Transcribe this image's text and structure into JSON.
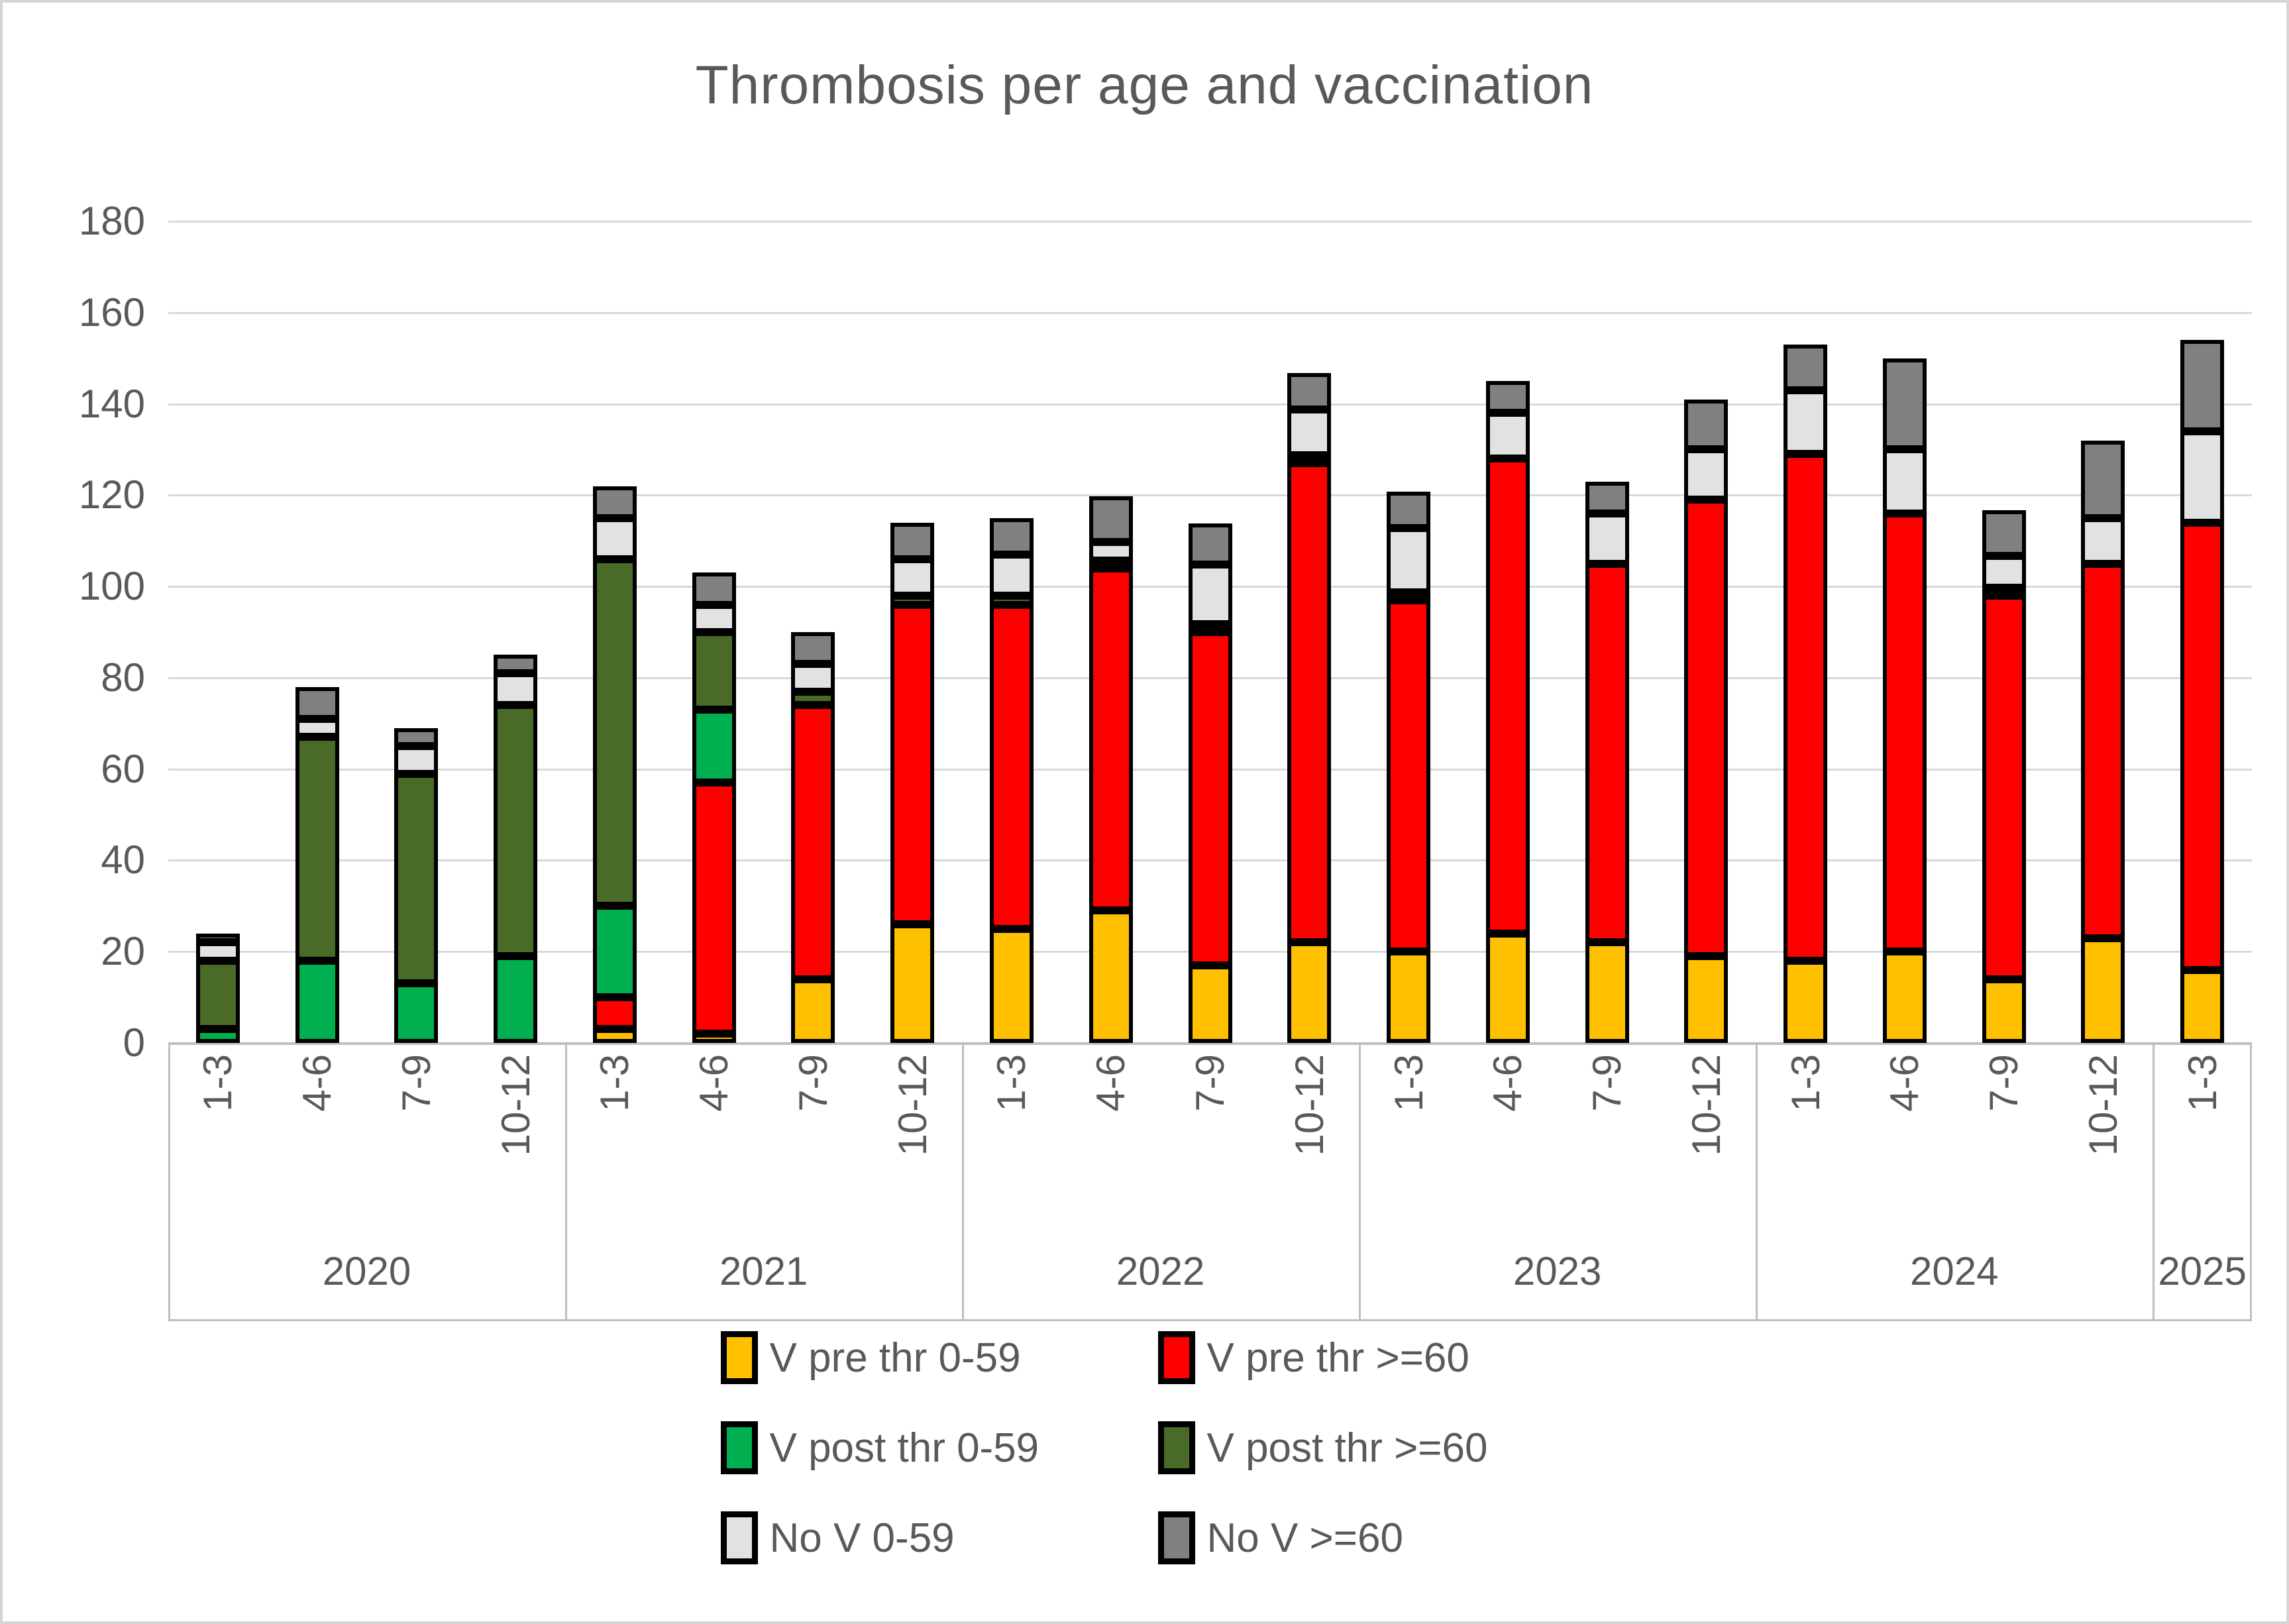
{
  "title": "Thrombosis per age and vaccination",
  "colors": {
    "v_pre_0_59": "#FFC000",
    "v_pre_60": "#FF0000",
    "v_post_0_59": "#00B050",
    "v_post_60": "#4A6A28",
    "no_v_0_59": "#E2E2E2",
    "no_v_60": "#808080",
    "gridline": "#d9d9d9",
    "axis_line": "#bfbfbf",
    "text": "#595959",
    "bar_border": "#000000"
  },
  "chart_data": {
    "type": "bar",
    "stacked": true,
    "title": "Thrombosis per age and vaccination",
    "xlabel": "",
    "ylabel": "",
    "ylim": [
      0,
      180
    ],
    "yticks": [
      0,
      20,
      40,
      60,
      80,
      100,
      120,
      140,
      160,
      180
    ],
    "grid": true,
    "legend_position": "bottom",
    "groups": [
      {
        "year": "2020",
        "quarters": [
          "1-3",
          "4-6",
          "7-9",
          "10-12"
        ]
      },
      {
        "year": "2021",
        "quarters": [
          "1-3",
          "4-6",
          "7-9",
          "10-12"
        ]
      },
      {
        "year": "2022",
        "quarters": [
          "1-3",
          "4-6",
          "7-9",
          "10-12"
        ]
      },
      {
        "year": "2023",
        "quarters": [
          "1-3",
          "4-6",
          "7-9",
          "10-12"
        ]
      },
      {
        "year": "2024",
        "quarters": [
          "1-3",
          "4-6",
          "7-9",
          "10-12"
        ]
      },
      {
        "year": "2025",
        "quarters": [
          "1-3"
        ]
      }
    ],
    "series": [
      {
        "name": "V pre thr 0-59",
        "color": "#FFC000",
        "values": [
          0,
          0,
          0,
          0,
          3,
          2,
          14,
          26,
          25,
          29,
          17,
          22,
          20,
          24,
          22,
          19,
          18,
          20,
          14,
          23,
          16
        ]
      },
      {
        "name": "V pre thr >=60",
        "color": "#FF0000",
        "values": [
          0,
          0,
          0,
          0,
          7,
          55,
          60,
          70,
          71,
          75,
          73,
          105,
          77,
          104,
          83,
          100,
          111,
          96,
          84,
          82,
          98
        ]
      },
      {
        "name": "V post thr 0-59",
        "color": "#00B050",
        "values": [
          3,
          18,
          13,
          19,
          20,
          16,
          0,
          0,
          0,
          0,
          0,
          0,
          0,
          0,
          0,
          0,
          0,
          0,
          0,
          0,
          0
        ]
      },
      {
        "name": "V post thr >=60",
        "color": "#4A6A28",
        "values": [
          15,
          49,
          46,
          55,
          76,
          17,
          3,
          2,
          2,
          1,
          1,
          1,
          1,
          0,
          0,
          0,
          0,
          0,
          1,
          0,
          0
        ]
      },
      {
        "name": "No V 0-59",
        "color": "#E2E2E2",
        "values": [
          4,
          4,
          6,
          7,
          9,
          6,
          6,
          8,
          9,
          4,
          13,
          10,
          14,
          10,
          11,
          11,
          14,
          14,
          7,
          10,
          20
        ]
      },
      {
        "name": "No V >=60",
        "color": "#808080",
        "values": [
          2,
          7,
          4,
          4,
          7,
          7,
          7,
          8,
          8,
          10,
          9,
          8,
          8,
          7,
          7,
          11,
          10,
          20,
          10,
          17,
          20
        ]
      }
    ],
    "bar_totals": [
      24,
      78,
      69,
      85,
      122,
      103,
      90,
      114,
      115,
      119,
      113,
      146,
      120,
      145,
      123,
      141,
      153,
      150,
      116,
      132,
      154
    ]
  },
  "legend": {
    "items": [
      {
        "label": "V pre thr 0-59",
        "color": "#FFC000"
      },
      {
        "label": "V pre thr >=60",
        "color": "#FF0000"
      },
      {
        "label": "V post thr 0-59",
        "color": "#00B050"
      },
      {
        "label": "V post thr >=60",
        "color": "#4A6A28"
      },
      {
        "label": "No V 0-59",
        "color": "#E2E2E2"
      },
      {
        "label": "No V >=60",
        "color": "#808080"
      }
    ]
  }
}
